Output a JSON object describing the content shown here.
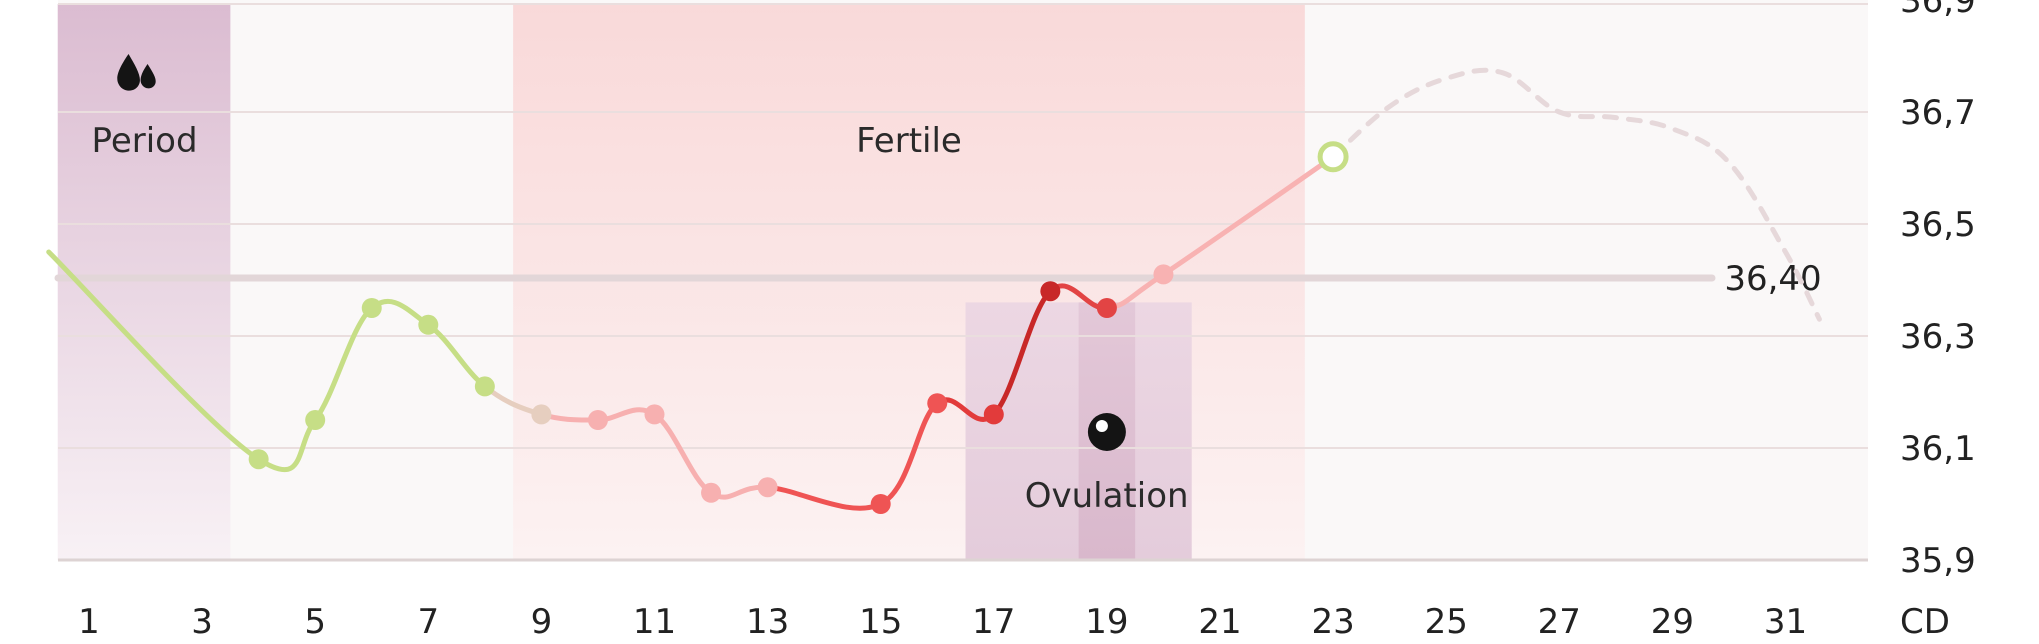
{
  "chart_data": {
    "type": "line",
    "x_axis": {
      "range": [
        1,
        32
      ],
      "ticks": [
        1,
        3,
        5,
        7,
        9,
        11,
        13,
        15,
        17,
        19,
        21,
        23,
        25,
        27,
        29,
        31
      ],
      "tick_labels": [
        "1",
        "3",
        "5",
        "7",
        "9",
        "11",
        "13",
        "15",
        "17",
        "19",
        "21",
        "23",
        "25",
        "27",
        "29",
        "31"
      ],
      "unit_label": "CD"
    },
    "y_axis": {
      "range": [
        35.9,
        36.9
      ],
      "ticks": [
        35.9,
        36.1,
        36.3,
        36.5,
        36.7,
        36.9
      ],
      "tick_labels": [
        "35,9",
        "36,1",
        "36,3",
        "36,5",
        "36,7",
        "36,9"
      ],
      "position": "right",
      "grid": true
    },
    "threshold": {
      "value": 36.4,
      "label": "36,40"
    },
    "zones": [
      {
        "name": "Period",
        "label": "Period",
        "x_start": 0.5,
        "x_end": 3.5,
        "color": "#dcbcd2",
        "icon": "drops-icon"
      },
      {
        "name": "Fertile",
        "label": "Fertile",
        "x_start": 8.5,
        "x_end": 22.5,
        "color": "#f7d6d6"
      },
      {
        "name": "Ovulation",
        "label": "Ovulation",
        "x_start": 16.5,
        "x_end": 20.5,
        "core_start": 18.5,
        "core_end": 19.5,
        "color": "#dcb8d0",
        "icon": "ovulation-icon"
      }
    ],
    "series": [
      {
        "points": [
          {
            "x": 4,
            "y": 36.08,
            "color": "#c6de86"
          },
          {
            "x": 5,
            "y": 36.15,
            "color": "#c6de86"
          },
          {
            "x": 6,
            "y": 36.35,
            "color": "#c6de86"
          },
          {
            "x": 7,
            "y": 36.32,
            "color": "#c6de86"
          },
          {
            "x": 8,
            "y": 36.21,
            "color": "#c6de86"
          },
          {
            "x": 9,
            "y": 36.16,
            "color": "#e6cebf"
          },
          {
            "x": 10,
            "y": 36.15,
            "color": "#f7b0b0"
          },
          {
            "x": 11,
            "y": 36.16,
            "color": "#f7b0b0"
          },
          {
            "x": 12,
            "y": 36.02,
            "color": "#f7b0b0"
          },
          {
            "x": 13,
            "y": 36.03,
            "color": "#f7b0b0"
          },
          {
            "x": 15,
            "y": 36.0,
            "color": "#ef5454"
          },
          {
            "x": 16,
            "y": 36.18,
            "color": "#ef5454"
          },
          {
            "x": 17,
            "y": 36.16,
            "color": "#e23b3b"
          },
          {
            "x": 18,
            "y": 36.38,
            "color": "#c82828"
          },
          {
            "x": 19,
            "y": 36.35,
            "color": "#e24444"
          },
          {
            "x": 20,
            "y": 36.41,
            "color": "#f8b2b2"
          }
        ],
        "today": {
          "x": 23,
          "y": 36.62,
          "color": "#c6de86"
        },
        "leading_line": [
          {
            "x": 0.5,
            "y": 36.45
          }
        ],
        "projection": [
          {
            "x": 23,
            "y": 36.62
          },
          {
            "x": 24,
            "y": 36.71
          },
          {
            "x": 25,
            "y": 36.76
          },
          {
            "x": 26,
            "y": 36.77
          },
          {
            "x": 27,
            "y": 36.7
          },
          {
            "x": 28,
            "y": 36.69
          },
          {
            "x": 29,
            "y": 36.67
          },
          {
            "x": 30,
            "y": 36.61
          },
          {
            "x": 31,
            "y": 36.45
          },
          {
            "x": 31.6,
            "y": 36.33
          }
        ]
      }
    ]
  }
}
